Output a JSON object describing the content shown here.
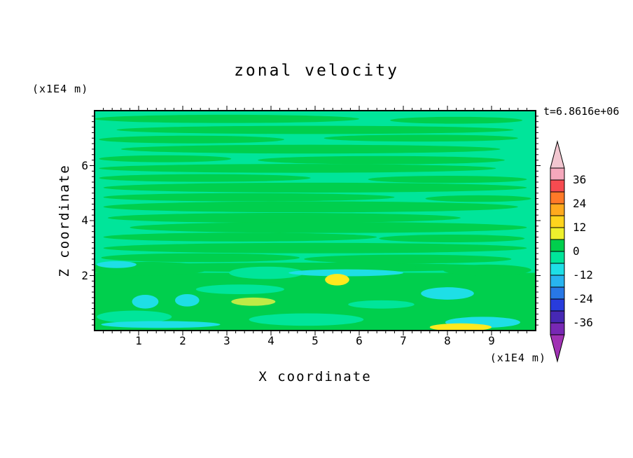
{
  "chart_data": {
    "type": "filled_contour",
    "title": "zonal velocity",
    "time_label": "t=6.8616e+06",
    "xlabel": "X coordinate",
    "x_unit": "(x1E4 m)",
    "ylabel": "Z coordinate",
    "y_unit": "(x1E4 m)",
    "x_range": [
      0,
      10
    ],
    "y_range": [
      0,
      8
    ],
    "x_ticks": [
      1,
      2,
      3,
      4,
      5,
      6,
      7,
      8,
      9
    ],
    "y_ticks": [
      2,
      4,
      6
    ],
    "minor_tick_step": 0.2,
    "contour_interval": 6,
    "colorbar": {
      "min": -42,
      "max": 42,
      "interval": 6,
      "tick_labels": [
        "36",
        "24",
        "12",
        "0",
        "-12",
        "-24",
        "-36"
      ],
      "band_colors_top_to_bottom": [
        "#F5A8BC",
        "#F64B50",
        "#FF7A28",
        "#FFAA1E",
        "#FFD41E",
        "#EEF02D",
        "#00CF4D",
        "#00E59A",
        "#1EDFE6",
        "#28B4F0",
        "#2878E6",
        "#283CDC",
        "#4628B4",
        "#7828B4"
      ],
      "over_color": "#F2C6D0",
      "under_color": "#A032B4"
    },
    "palette": {
      "s": "#00E59A",
      "g": "#00CF4D",
      "c": "#1EDFE6",
      "y": "#FFE91E",
      "yg": "#BFEB46"
    },
    "field_summary": "Zonal velocity field dominated by values between -6 and 6 (green 0..6 and spring-green -6..0 bands) arranged in thin horizontal streaks; solid green layer below z=2 with cyan patches (-12..-6) near the bottom and small yellow patches (6..18) near x=5.5,z=1.9 and x=8.3,z=0.1.",
    "field_shapes": [
      {
        "x": 3.0,
        "z": 7.7,
        "w": 6.0,
        "h": 0.3,
        "c": "g"
      },
      {
        "x": 8.2,
        "z": 7.65,
        "w": 3.0,
        "h": 0.25,
        "c": "g"
      },
      {
        "x": 5.0,
        "z": 7.3,
        "w": 9.0,
        "h": 0.3,
        "c": "g"
      },
      {
        "x": 2.2,
        "z": 6.95,
        "w": 4.2,
        "h": 0.28,
        "c": "g"
      },
      {
        "x": 7.4,
        "z": 7.0,
        "w": 4.4,
        "h": 0.25,
        "c": "g"
      },
      {
        "x": 4.9,
        "z": 6.6,
        "w": 8.6,
        "h": 0.32,
        "c": "g"
      },
      {
        "x": 1.6,
        "z": 6.25,
        "w": 3.0,
        "h": 0.25,
        "c": "g"
      },
      {
        "x": 6.5,
        "z": 6.2,
        "w": 5.6,
        "h": 0.3,
        "c": "g"
      },
      {
        "x": 4.6,
        "z": 5.9,
        "w": 9.0,
        "h": 0.32,
        "c": "g"
      },
      {
        "x": 2.5,
        "z": 5.55,
        "w": 4.8,
        "h": 0.28,
        "c": "g"
      },
      {
        "x": 8.0,
        "z": 5.5,
        "w": 3.6,
        "h": 0.26,
        "c": "g"
      },
      {
        "x": 5.0,
        "z": 5.2,
        "w": 9.6,
        "h": 0.36,
        "c": "g"
      },
      {
        "x": 3.5,
        "z": 4.85,
        "w": 6.6,
        "h": 0.3,
        "c": "g"
      },
      {
        "x": 8.7,
        "z": 4.8,
        "w": 2.4,
        "h": 0.24,
        "c": "g"
      },
      {
        "x": 4.9,
        "z": 4.5,
        "w": 9.4,
        "h": 0.4,
        "c": "g"
      },
      {
        "x": 4.3,
        "z": 4.1,
        "w": 8.0,
        "h": 0.36,
        "c": "g"
      },
      {
        "x": 5.3,
        "z": 3.75,
        "w": 9.0,
        "h": 0.4,
        "c": "g"
      },
      {
        "x": 3.3,
        "z": 3.4,
        "w": 6.2,
        "h": 0.32,
        "c": "g"
      },
      {
        "x": 8.1,
        "z": 3.35,
        "w": 3.3,
        "h": 0.28,
        "c": "g"
      },
      {
        "x": 5.0,
        "z": 3.0,
        "w": 9.6,
        "h": 0.38,
        "c": "g"
      },
      {
        "x": 2.4,
        "z": 2.65,
        "w": 4.5,
        "h": 0.32,
        "c": "g"
      },
      {
        "x": 7.1,
        "z": 2.6,
        "w": 4.7,
        "h": 0.32,
        "c": "g"
      },
      {
        "x": 4.7,
        "z": 2.3,
        "w": 9.0,
        "h": 0.34,
        "c": "g"
      },
      {
        "t": "r",
        "x": 5.0,
        "z": 1.05,
        "w": 10.0,
        "h": 2.1,
        "c": "g"
      },
      {
        "x": 1.2,
        "z": 2.25,
        "w": 2.8,
        "h": 0.5,
        "c": "g"
      },
      {
        "x": 6.0,
        "z": 2.3,
        "w": 2.6,
        "h": 0.4,
        "c": "g"
      },
      {
        "x": 8.9,
        "z": 2.2,
        "w": 2.0,
        "h": 0.4,
        "c": "g"
      },
      {
        "x": 3.9,
        "z": 2.1,
        "w": 1.7,
        "h": 0.45,
        "c": "s"
      },
      {
        "x": 3.3,
        "z": 1.5,
        "w": 2.0,
        "h": 0.35,
        "c": "s"
      },
      {
        "x": 0.9,
        "z": 0.5,
        "w": 1.7,
        "h": 0.45,
        "c": "s"
      },
      {
        "x": 4.8,
        "z": 0.4,
        "w": 2.6,
        "h": 0.45,
        "c": "s"
      },
      {
        "x": 6.5,
        "z": 0.95,
        "w": 1.5,
        "h": 0.3,
        "c": "s"
      },
      {
        "x": 1.5,
        "z": 0.22,
        "w": 2.7,
        "h": 0.25,
        "c": "c"
      },
      {
        "x": 1.15,
        "z": 1.05,
        "w": 0.6,
        "h": 0.5,
        "c": "c"
      },
      {
        "x": 2.1,
        "z": 1.1,
        "w": 0.55,
        "h": 0.45,
        "c": "c"
      },
      {
        "x": 5.7,
        "z": 2.1,
        "w": 2.6,
        "h": 0.25,
        "c": "c"
      },
      {
        "x": 8.0,
        "z": 1.35,
        "w": 1.2,
        "h": 0.45,
        "c": "c"
      },
      {
        "x": 8.8,
        "z": 0.3,
        "w": 1.7,
        "h": 0.4,
        "c": "c"
      },
      {
        "x": 0.5,
        "z": 2.4,
        "w": 0.9,
        "h": 0.25,
        "c": "c"
      },
      {
        "x": 3.6,
        "z": 1.05,
        "w": 1.0,
        "h": 0.3,
        "c": "yg"
      },
      {
        "x": 5.5,
        "z": 1.85,
        "w": 0.55,
        "h": 0.42,
        "c": "y"
      },
      {
        "x": 8.3,
        "z": 0.12,
        "w": 1.4,
        "h": 0.28,
        "c": "y"
      }
    ]
  }
}
